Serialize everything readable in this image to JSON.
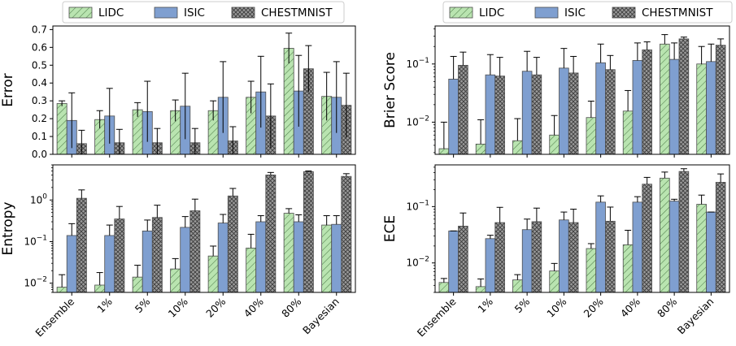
{
  "colors": {
    "LIDC": "#b9e4b0",
    "ISIC": "#7f9fd0",
    "CHESTMNIST": "#9a9a9a",
    "edge": "#4d4d4d",
    "errorbar": "#000000"
  },
  "hatches": {
    "LIDC": "diagonal",
    "ISIC": "none",
    "CHESTMNIST": "crosshatch"
  },
  "legend": {
    "left": [
      "LIDC",
      "ISIC",
      "CHESTMNIST"
    ],
    "right": [
      "LIDC",
      "ISIC",
      "CHESTMNIST"
    ]
  },
  "chart_data": [
    {
      "type": "bar",
      "panel": "top-left",
      "ylabel": "Error",
      "yscale": "linear",
      "ylim": [
        0,
        0.72
      ],
      "yticks": [
        0.0,
        0.1,
        0.2,
        0.3,
        0.4,
        0.5,
        0.6,
        0.7
      ],
      "ytick_labels": [
        "0.0",
        "0.1",
        "0.2",
        "0.3",
        "0.4",
        "0.5",
        "0.6",
        "0.7"
      ],
      "categories": [
        "Ensemble",
        "1%",
        "5%",
        "10%",
        "20%",
        "40%",
        "80%",
        "Bayesian"
      ],
      "show_category_labels": false,
      "series": [
        {
          "name": "LIDC",
          "values": [
            0.285,
            0.195,
            0.25,
            0.245,
            0.245,
            0.32,
            0.595,
            0.325
          ],
          "err": [
            0.015,
            0.05,
            0.04,
            0.06,
            0.055,
            0.09,
            0.085,
            0.135
          ]
        },
        {
          "name": "ISIC",
          "values": [
            0.19,
            0.215,
            0.24,
            0.27,
            0.32,
            0.35,
            0.355,
            0.32
          ],
          "err": [
            0.155,
            0.155,
            0.17,
            0.185,
            0.2,
            0.2,
            0.2,
            0.2
          ]
        },
        {
          "name": "CHESTMNIST",
          "values": [
            0.06,
            0.065,
            0.065,
            0.065,
            0.075,
            0.215,
            0.48,
            0.275
          ],
          "err": [
            0.075,
            0.075,
            0.08,
            0.08,
            0.08,
            0.18,
            0.13,
            0.18
          ]
        }
      ]
    },
    {
      "type": "bar",
      "panel": "bottom-left",
      "ylabel": "Entropy",
      "yscale": "log",
      "ylim": [
        0.006,
        7
      ],
      "yticks": [
        0.01,
        0.1,
        1
      ],
      "ytick_labels": [
        "10^-2",
        "10^-1",
        "10^0"
      ],
      "categories": [
        "Ensemble",
        "1%",
        "5%",
        "10%",
        "20%",
        "40%",
        "80%",
        "Bayesian"
      ],
      "show_category_labels": true,
      "series": [
        {
          "name": "LIDC",
          "values": [
            0.008,
            0.009,
            0.014,
            0.022,
            0.045,
            0.07,
            0.48,
            0.25
          ],
          "err_up": [
            0.016,
            0.018,
            0.027,
            0.039,
            0.078,
            0.15,
            0.62,
            0.42
          ]
        },
        {
          "name": "ISIC",
          "values": [
            0.14,
            0.14,
            0.18,
            0.22,
            0.28,
            0.3,
            0.3,
            0.26
          ],
          "err_up": [
            0.27,
            0.25,
            0.33,
            0.4,
            0.45,
            0.42,
            0.44,
            0.42
          ]
        },
        {
          "name": "CHESTMNIST",
          "values": [
            1.1,
            0.35,
            0.38,
            0.55,
            1.25,
            4.0,
            4.8,
            3.7
          ],
          "err_up": [
            1.75,
            0.7,
            0.75,
            1.05,
            1.9,
            4.6,
            5.0,
            4.3
          ]
        }
      ]
    },
    {
      "type": "bar",
      "panel": "top-right",
      "ylabel": "Brier Score",
      "yscale": "log",
      "ylim": [
        0.0028,
        0.45
      ],
      "yticks": [
        0.01,
        0.1
      ],
      "ytick_labels": [
        "10^-2",
        "10^-1"
      ],
      "categories": [
        "Ensemble",
        "1%",
        "5%",
        "10%",
        "20%",
        "40%",
        "80%",
        "Bayesian"
      ],
      "show_category_labels": false,
      "series": [
        {
          "name": "LIDC",
          "values": [
            0.0035,
            0.0042,
            0.0048,
            0.006,
            0.012,
            0.0155,
            0.22,
            0.1
          ],
          "err_up": [
            0.01,
            0.011,
            0.0115,
            0.013,
            0.023,
            0.035,
            0.32,
            0.2
          ]
        },
        {
          "name": "ISIC",
          "values": [
            0.055,
            0.065,
            0.075,
            0.085,
            0.105,
            0.115,
            0.12,
            0.11
          ],
          "err_up": [
            0.135,
            0.145,
            0.165,
            0.185,
            0.22,
            0.23,
            0.23,
            0.22
          ]
        },
        {
          "name": "CHESTMNIST",
          "values": [
            0.095,
            0.062,
            0.065,
            0.07,
            0.08,
            0.175,
            0.27,
            0.21
          ],
          "err_up": [
            0.16,
            0.13,
            0.13,
            0.135,
            0.14,
            0.24,
            0.29,
            0.27
          ]
        }
      ]
    },
    {
      "type": "bar",
      "panel": "bottom-right",
      "ylabel": "ECE",
      "yscale": "log",
      "ylim": [
        0.003,
        0.55
      ],
      "yticks": [
        0.01,
        0.1
      ],
      "ytick_labels": [
        "10^-2",
        "10^-1"
      ],
      "categories": [
        "Ensemble",
        "1%",
        "5%",
        "10%",
        "20%",
        "40%",
        "80%",
        "Bayesian"
      ],
      "show_category_labels": true,
      "series": [
        {
          "name": "LIDC",
          "values": [
            0.0045,
            0.0038,
            0.005,
            0.0072,
            0.018,
            0.021,
            0.32,
            0.11
          ],
          "err_up": [
            0.0053,
            0.0052,
            0.0062,
            0.0098,
            0.022,
            0.038,
            0.41,
            0.16
          ]
        },
        {
          "name": "ISIC",
          "values": [
            0.037,
            0.027,
            0.039,
            0.058,
            0.12,
            0.12,
            0.125,
            0.08
          ],
          "err_up": [
            0.037,
            0.031,
            0.06,
            0.08,
            0.155,
            0.15,
            0.135,
            0.08
          ]
        },
        {
          "name": "CHESTMNIST",
          "values": [
            0.045,
            0.052,
            0.054,
            0.052,
            0.055,
            0.25,
            0.42,
            0.27
          ],
          "err_up": [
            0.077,
            0.097,
            0.094,
            0.09,
            0.098,
            0.33,
            0.47,
            0.38
          ]
        }
      ]
    }
  ]
}
